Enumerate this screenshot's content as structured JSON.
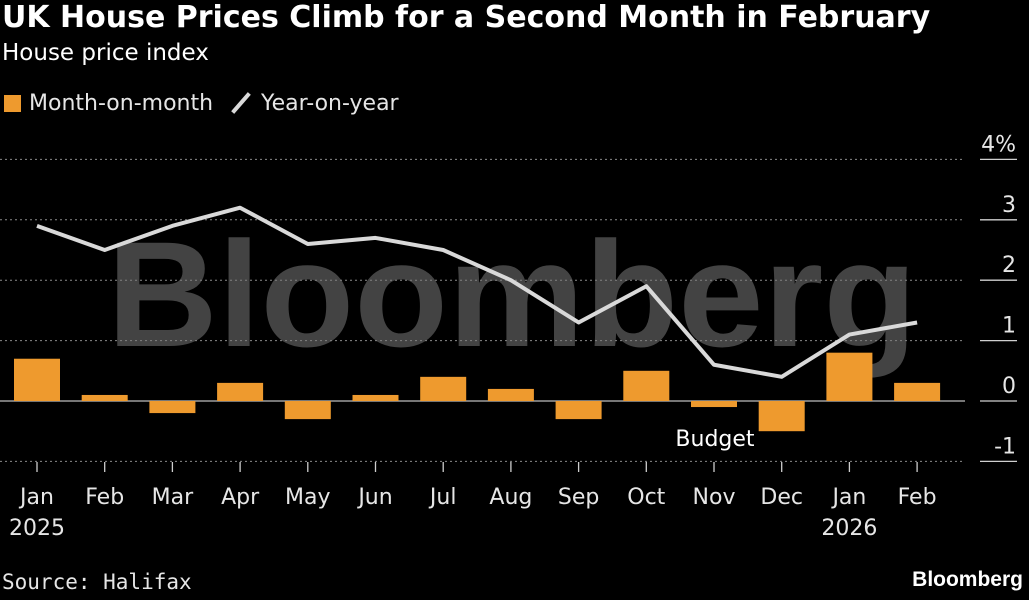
{
  "header": {
    "title": "UK House Prices Climb for a Second Month in February",
    "subtitle": "House price index"
  },
  "legend": {
    "mom_label": "Month-on-month",
    "yoy_label": "Year-on-year"
  },
  "watermark": "Bloomberg",
  "footer": {
    "source": "Source: Halifax",
    "brand": "Bloomberg"
  },
  "colors": {
    "background": "#000000",
    "bar": "#ee9a2e",
    "line": "#d9d9d9",
    "grid": "#8a8a8a",
    "watermark": "#7a7a7a"
  },
  "chart_data": {
    "type": "bar+line",
    "categories": [
      "Jan",
      "Feb",
      "Mar",
      "Apr",
      "May",
      "Jun",
      "Jul",
      "Aug",
      "Sep",
      "Oct",
      "Nov",
      "Dec",
      "Jan",
      "Feb"
    ],
    "category_years": [
      "2025",
      "",
      "",
      "",
      "",
      "",
      "",
      "",
      "",
      "",
      "",
      "",
      "2026",
      ""
    ],
    "series": [
      {
        "name": "Month-on-month",
        "type": "bar",
        "values": [
          0.7,
          0.1,
          -0.2,
          0.3,
          -0.3,
          0.1,
          0.4,
          0.2,
          -0.3,
          0.5,
          -0.1,
          -0.5,
          0.8,
          0.3
        ]
      },
      {
        "name": "Year-on-year",
        "type": "line",
        "values": [
          2.9,
          2.5,
          2.9,
          3.2,
          2.6,
          2.7,
          2.5,
          2.0,
          1.3,
          1.9,
          0.6,
          0.4,
          1.1,
          1.3
        ]
      }
    ],
    "annotations": [
      {
        "text": "Budget",
        "category_index": 10
      }
    ],
    "y_ticks": [
      -1,
      0,
      1,
      2,
      3,
      4
    ],
    "y_tick_labels": [
      "-1",
      "0",
      "1",
      "2",
      "3",
      "4%"
    ],
    "ylim": [
      -1,
      4
    ],
    "grid": true,
    "y_axis_side": "right",
    "legend_position": "top-left"
  }
}
